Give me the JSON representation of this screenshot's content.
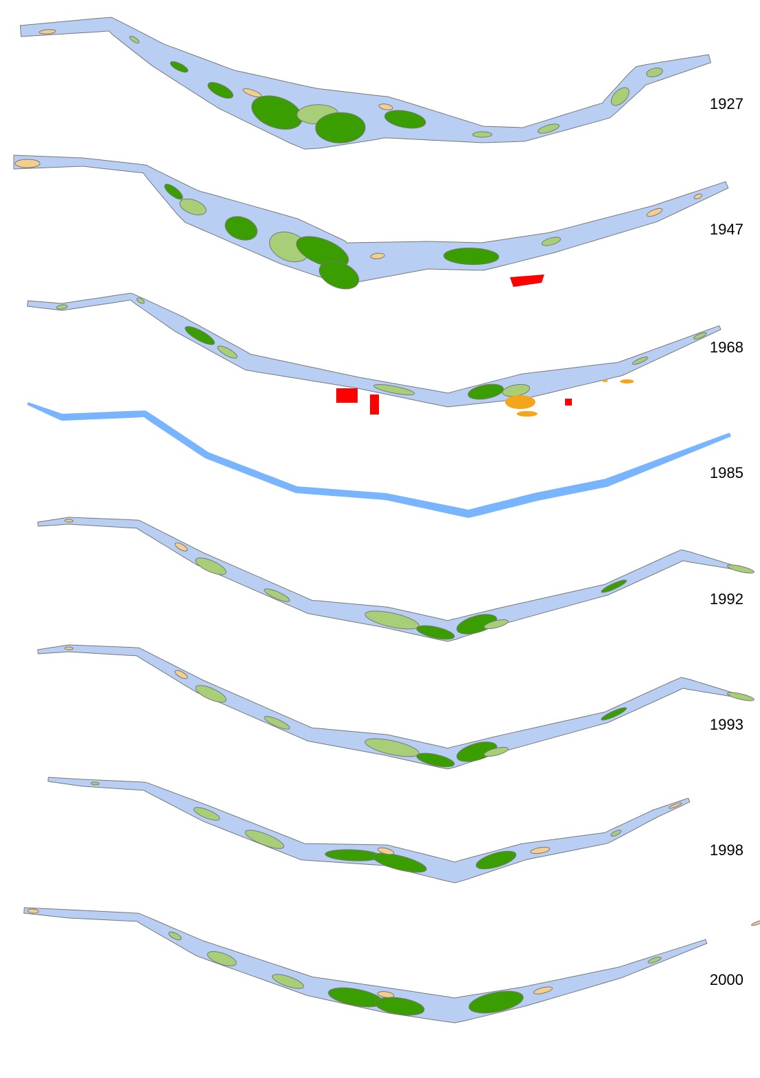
{
  "labels": [
    "1927",
    "1947",
    "1968",
    "1985",
    "1992",
    "1993",
    "1998",
    "2000"
  ]
}
